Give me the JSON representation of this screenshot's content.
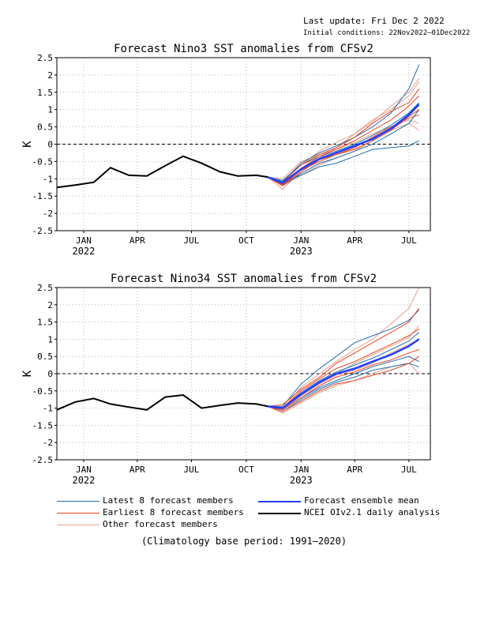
{
  "header": {
    "last_update": "Last update: Fri Dec 2 2022",
    "initial_conditions": "Initial conditions: 22Nov2022–01Dec2022"
  },
  "colors": {
    "latest": "#1f6fb4",
    "earliest": "#e8431f",
    "other": "#e8a08c",
    "mean": "#1f3fff",
    "analysis": "#000000",
    "grid": "#aaaaaa"
  },
  "chart_data": [
    {
      "type": "line",
      "title": "Forecast Nino3 SST anomalies from CFSv2",
      "ylabel": "K",
      "ylim": [
        -2.5,
        2.5
      ],
      "yticks": [
        "2.5",
        "2",
        "1.5",
        "1",
        "0.5",
        "0",
        "-0.5",
        "-1",
        "-1.5",
        "-2",
        "-2.5"
      ],
      "xlim": [
        "2021-12-01",
        "2023-08-20"
      ],
      "xticks": [
        {
          "label": "JAN",
          "year": "2022",
          "x": "2022-01-15"
        },
        {
          "label": "APR",
          "year": "",
          "x": "2022-04-15"
        },
        {
          "label": "JUL",
          "year": "",
          "x": "2022-07-15"
        },
        {
          "label": "OCT",
          "year": "",
          "x": "2022-10-15"
        },
        {
          "label": "JAN",
          "year": "2023",
          "x": "2023-01-15"
        },
        {
          "label": "APR",
          "year": "",
          "x": "2023-04-15"
        },
        {
          "label": "JUL",
          "year": "",
          "x": "2023-07-15"
        }
      ],
      "grid": true,
      "zero_line": "dashed",
      "analysis": {
        "name": "NCEI OIv2.1 daily analysis",
        "x": [
          "2021-12-01",
          "2022-01-01",
          "2022-02-01",
          "2022-03-01",
          "2022-04-01",
          "2022-05-01",
          "2022-06-01",
          "2022-07-01",
          "2022-08-01",
          "2022-09-01",
          "2022-10-01",
          "2022-11-01",
          "2022-11-20"
        ],
        "y": [
          -1.25,
          -1.18,
          -1.1,
          -0.68,
          -0.9,
          -0.92,
          -0.62,
          -0.35,
          -0.55,
          -0.8,
          -0.92,
          -0.9,
          -0.95
        ]
      },
      "forecast_x": [
        "2022-11-20",
        "2022-12-15",
        "2023-01-15",
        "2023-02-15",
        "2023-03-15",
        "2023-04-15",
        "2023-05-15",
        "2023-06-15",
        "2023-07-15",
        "2023-08-01"
      ],
      "ensemble_mean": [
        -0.95,
        -1.12,
        -0.72,
        -0.42,
        -0.25,
        -0.05,
        0.15,
        0.45,
        0.85,
        1.15
      ],
      "latest_members": [
        [
          -0.95,
          -1.08,
          -0.55,
          -0.25,
          -0.05,
          0.2,
          0.5,
          0.9,
          1.6,
          2.3
        ],
        [
          -0.95,
          -1.2,
          -0.85,
          -0.55,
          -0.4,
          -0.2,
          0.0,
          0.3,
          0.6,
          1.0
        ],
        [
          -0.95,
          -1.1,
          -0.9,
          -0.65,
          -0.55,
          -0.35,
          -0.15,
          -0.1,
          -0.05,
          0.1
        ],
        [
          -0.95,
          -1.05,
          -0.6,
          -0.35,
          -0.2,
          0.0,
          0.25,
          0.55,
          0.9,
          1.2
        ]
      ],
      "earliest_members": [
        [
          -0.95,
          -1.15,
          -0.7,
          -0.35,
          -0.15,
          0.1,
          0.4,
          0.7,
          1.1,
          1.4
        ],
        [
          -0.95,
          -1.2,
          -0.8,
          -0.45,
          -0.3,
          -0.1,
          0.2,
          0.5,
          0.75,
          0.85
        ],
        [
          -0.95,
          -1.1,
          -0.6,
          -0.3,
          -0.1,
          0.2,
          0.6,
          0.95,
          1.2,
          1.6
        ],
        [
          -0.95,
          -1.18,
          -0.75,
          -0.5,
          -0.3,
          -0.15,
          0.1,
          0.4,
          0.8,
          1.0
        ]
      ],
      "other_members": [
        [
          -0.95,
          -1.3,
          -0.8,
          -0.4,
          -0.1,
          0.3,
          0.7,
          1.0,
          1.4,
          1.8
        ],
        [
          -0.95,
          -1.0,
          -0.5,
          -0.3,
          -0.15,
          0.05,
          0.3,
          0.5,
          0.7,
          0.6
        ],
        [
          -0.95,
          -1.2,
          -0.9,
          -0.6,
          -0.4,
          -0.2,
          0.1,
          0.4,
          0.6,
          0.4
        ],
        [
          -0.95,
          -1.1,
          -0.6,
          -0.2,
          0.05,
          0.3,
          0.65,
          1.1,
          1.5,
          1.9
        ]
      ]
    },
    {
      "type": "line",
      "title": "Forecast Nino34 SST anomalies from CFSv2",
      "ylabel": "K",
      "ylim": [
        -2.5,
        2.5
      ],
      "yticks": [
        "2.5",
        "2",
        "1.5",
        "1",
        "0.5",
        "0",
        "-0.5",
        "-1",
        "-1.5",
        "-2",
        "-2.5"
      ],
      "xlim": [
        "2021-12-01",
        "2023-08-20"
      ],
      "xticks": [
        {
          "label": "JAN",
          "year": "2022",
          "x": "2022-01-15"
        },
        {
          "label": "APR",
          "year": "",
          "x": "2022-04-15"
        },
        {
          "label": "JUL",
          "year": "",
          "x": "2022-07-15"
        },
        {
          "label": "OCT",
          "year": "",
          "x": "2022-10-15"
        },
        {
          "label": "JAN",
          "year": "2023",
          "x": "2023-01-15"
        },
        {
          "label": "APR",
          "year": "",
          "x": "2023-04-15"
        },
        {
          "label": "JUL",
          "year": "",
          "x": "2023-07-15"
        }
      ],
      "grid": true,
      "zero_line": "dashed",
      "analysis": {
        "name": "NCEI OIv2.1 daily analysis",
        "x": [
          "2021-12-01",
          "2022-01-01",
          "2022-02-01",
          "2022-03-01",
          "2022-04-01",
          "2022-05-01",
          "2022-06-01",
          "2022-07-01",
          "2022-08-01",
          "2022-09-01",
          "2022-10-01",
          "2022-11-01",
          "2022-11-20"
        ],
        "y": [
          -1.05,
          -0.82,
          -0.72,
          -0.88,
          -0.97,
          -1.05,
          -0.68,
          -0.62,
          -1.0,
          -0.92,
          -0.85,
          -0.88,
          -0.95
        ]
      },
      "forecast_x": [
        "2022-11-20",
        "2022-12-15",
        "2023-01-15",
        "2023-02-15",
        "2023-03-15",
        "2023-04-15",
        "2023-05-15",
        "2023-06-15",
        "2023-07-15",
        "2023-08-01"
      ],
      "ensemble_mean": [
        -0.95,
        -1.0,
        -0.6,
        -0.25,
        0.0,
        0.15,
        0.35,
        0.55,
        0.8,
        1.0
      ],
      "latest_members": [
        [
          -0.95,
          -0.95,
          -0.3,
          0.15,
          0.5,
          0.9,
          1.1,
          1.3,
          1.55,
          1.85
        ],
        [
          -0.95,
          -1.05,
          -0.7,
          -0.4,
          -0.2,
          0.0,
          0.2,
          0.35,
          0.5,
          0.35
        ],
        [
          -0.95,
          -1.0,
          -0.55,
          -0.2,
          0.05,
          0.25,
          0.45,
          0.7,
          0.95,
          1.2
        ],
        [
          -0.95,
          -1.1,
          -0.75,
          -0.45,
          -0.25,
          -0.1,
          0.1,
          0.2,
          0.3,
          0.2
        ]
      ],
      "earliest_members": [
        [
          -0.95,
          -0.9,
          -0.45,
          -0.1,
          0.3,
          0.6,
          0.9,
          1.2,
          1.5,
          1.9
        ],
        [
          -0.95,
          -1.05,
          -0.7,
          -0.35,
          -0.1,
          0.05,
          0.25,
          0.4,
          0.6,
          0.7
        ],
        [
          -0.95,
          -1.0,
          -0.5,
          -0.15,
          0.15,
          0.35,
          0.6,
          0.85,
          1.1,
          1.3
        ],
        [
          -0.95,
          -1.1,
          -0.8,
          -0.5,
          -0.3,
          -0.2,
          -0.05,
          0.1,
          0.3,
          0.5
        ]
      ],
      "other_members": [
        [
          -0.95,
          -1.0,
          -0.4,
          0.0,
          0.35,
          0.7,
          1.0,
          1.45,
          1.9,
          2.5
        ],
        [
          -0.95,
          -1.15,
          -0.85,
          -0.55,
          -0.35,
          -0.2,
          0.0,
          0.2,
          0.3,
          0.0
        ],
        [
          -0.95,
          -1.0,
          -0.6,
          -0.3,
          0.0,
          0.3,
          0.55,
          0.8,
          1.05,
          1.4
        ],
        [
          -0.95,
          -1.05,
          -0.65,
          -0.3,
          -0.05,
          0.1,
          0.3,
          0.6,
          0.85,
          1.0
        ]
      ]
    }
  ],
  "legend": {
    "latest": "Latest 8 forecast members",
    "earliest": "Earliest 8 forecast members",
    "other": "Other forecast members",
    "mean": "Forecast ensemble mean",
    "analysis": "NCEI OIv2.1 daily analysis"
  },
  "footnote": "(Climatology base period: 1991–2020)"
}
